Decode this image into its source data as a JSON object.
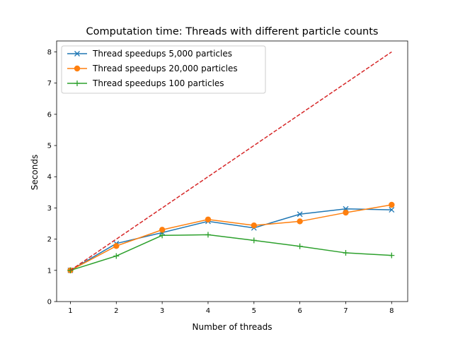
{
  "chart_data": {
    "type": "line",
    "title": "Computation time: Threads with different particle counts",
    "xlabel": "Number of threads",
    "ylabel": "Seconds",
    "xlim": [
      0.7,
      8.35
    ],
    "ylim": [
      0,
      8.35
    ],
    "x_ticks": [
      1,
      2,
      3,
      4,
      5,
      6,
      7,
      8
    ],
    "y_ticks": [
      0,
      1,
      2,
      3,
      4,
      5,
      6,
      7,
      8
    ],
    "grid": false,
    "legend_position": "top-left",
    "x": [
      1,
      2,
      3,
      4,
      5,
      6,
      7,
      8
    ],
    "series": [
      {
        "name": "Thread speedups 5,000 particles",
        "values": [
          1.0,
          1.86,
          2.21,
          2.57,
          2.36,
          2.8,
          2.97,
          2.94
        ],
        "color": "#1f77b4",
        "marker": "x",
        "linestyle": "solid"
      },
      {
        "name": "Thread speedups 20,000 particles",
        "values": [
          1.0,
          1.78,
          2.3,
          2.63,
          2.44,
          2.57,
          2.85,
          3.1
        ],
        "color": "#ff7f0e",
        "marker": "circle",
        "linestyle": "solid"
      },
      {
        "name": "Thread speedups 100 particles",
        "values": [
          1.0,
          1.46,
          2.12,
          2.14,
          1.96,
          1.77,
          1.56,
          1.48
        ],
        "color": "#2ca02c",
        "marker": "plus",
        "linestyle": "solid"
      },
      {
        "values": [
          1,
          2,
          3,
          4,
          5,
          6,
          7,
          8
        ],
        "color": "#d62728",
        "marker": "none",
        "linestyle": "dashed"
      }
    ]
  }
}
